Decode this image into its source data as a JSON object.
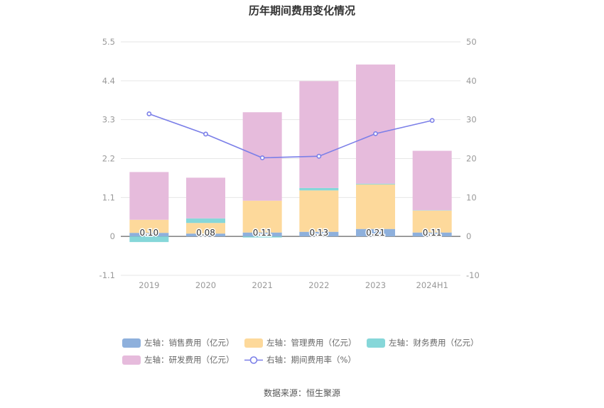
{
  "chart_data": {
    "type": "bar",
    "title": "历年期间费用变化情况",
    "categories": [
      "2019",
      "2020",
      "2021",
      "2022",
      "2023",
      "2024H1"
    ],
    "left_axis": {
      "ylim": [
        -1.1,
        5.5
      ],
      "ticks": [
        "-1.1",
        "0",
        "1.1",
        "2.2",
        "3.3",
        "4.4",
        "5.5"
      ]
    },
    "right_axis": {
      "ylim": [
        -10,
        50
      ],
      "ticks": [
        "-10",
        "0",
        "10",
        "20",
        "30",
        "40",
        "50"
      ]
    },
    "series": [
      {
        "name": "左轴：销售费用（亿元）",
        "color": "#8eb0dc",
        "stack": "cost",
        "axis": "left",
        "values": [
          0.1,
          0.08,
          0.11,
          0.13,
          0.21,
          0.11
        ],
        "labels": [
          "0.10",
          "0.08",
          "0.11",
          "0.13",
          "0.21",
          "0.11"
        ]
      },
      {
        "name": "左轴：管理费用（亿元）",
        "color": "#fdd99b",
        "stack": "cost",
        "axis": "left",
        "values": [
          0.37,
          0.3,
          0.9,
          1.17,
          1.26,
          0.62
        ]
      },
      {
        "name": "左轴：财务费用（亿元）",
        "color": "#86d7d9",
        "stack": "cost",
        "axis": "left",
        "values": [
          -0.16,
          0.13,
          -0.03,
          0.07,
          0.02,
          0.01
        ]
      },
      {
        "name": "左轴：研发费用（亿元）",
        "color": "#e6bbdc",
        "stack": "cost",
        "axis": "left",
        "values": [
          1.35,
          1.15,
          2.5,
          3.02,
          3.37,
          1.68
        ]
      },
      {
        "name": "右轴：期间费用率（%）",
        "color": "#7b7fe8",
        "type": "line",
        "axis": "right",
        "values": [
          31.5,
          26.3,
          20.2,
          20.6,
          26.4,
          29.8
        ]
      }
    ],
    "legend_position": "bottom",
    "grid": true
  },
  "source_text": "数据来源：恒生聚源"
}
